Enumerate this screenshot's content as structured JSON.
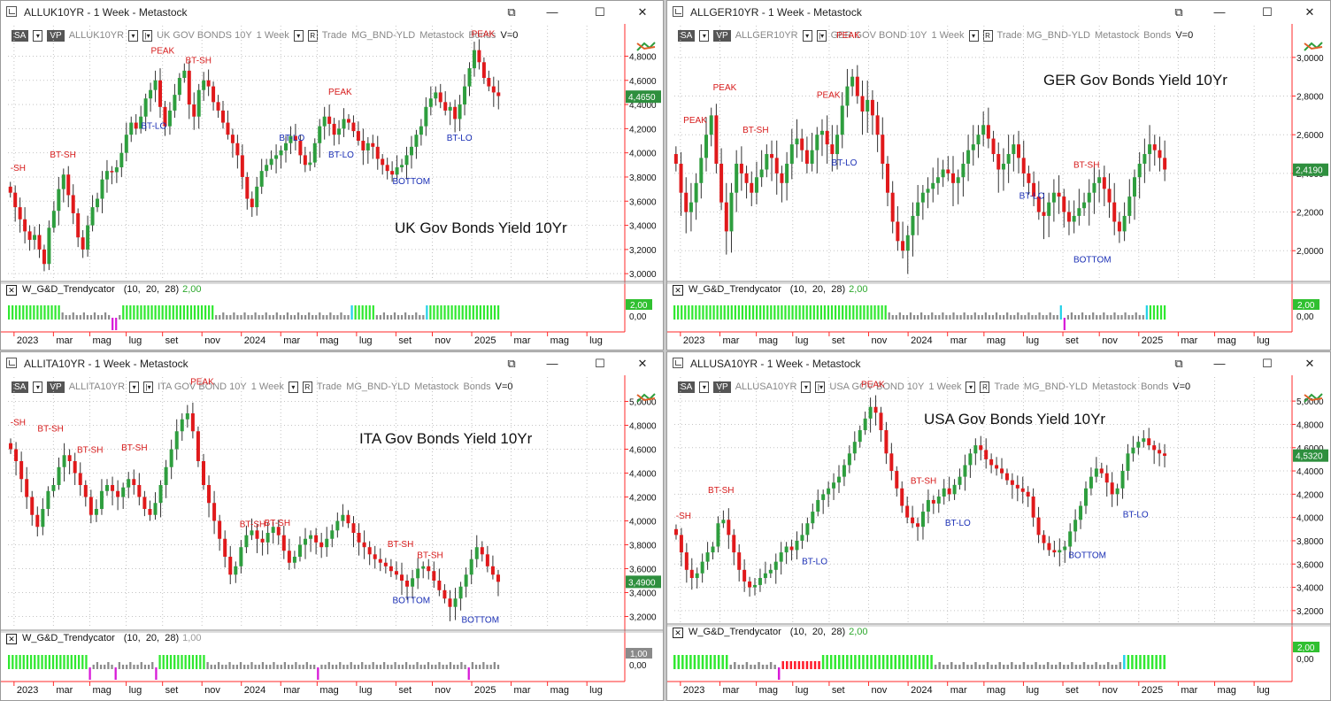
{
  "windows": [
    {
      "id": "uk",
      "title": "ALLUK10YR - 1 Week - Metastock",
      "toolbar": {
        "sa": "SA",
        "vp": "VP",
        "symbol": "ALLUK10YR",
        "name": "UK GOV BONDS 10Y",
        "period": "1 Week",
        "r": "R",
        "trade": "Trade",
        "group": "MG_BND-YLD",
        "source": "Metastock",
        "sector": "Bonds",
        "v": "V=0"
      },
      "chart_title": "UK Gov Bonds Yield 10Yr",
      "y_ticks": [
        "4,8000",
        "4,6000",
        "4,4000",
        "4,2000",
        "4,0000",
        "3,8000",
        "3,6000",
        "3,4000",
        "3,2000",
        "3,0000"
      ],
      "y_min": 2.95,
      "y_max": 4.95,
      "price_badge": "4,4650",
      "last_value": 4.465,
      "annotations": [
        {
          "text": "-SH",
          "color": "red"
        },
        {
          "text": "BT-SH",
          "color": "red"
        },
        {
          "text": "PEAK",
          "color": "red"
        },
        {
          "text": "BT-SH",
          "color": "red"
        },
        {
          "text": "BT-LO",
          "color": "blue"
        },
        {
          "text": "PEAK",
          "color": "red"
        },
        {
          "text": "BT-LO",
          "color": "blue"
        },
        {
          "text": "BT-LO",
          "color": "blue"
        },
        {
          "text": "BOTTOM",
          "color": "blue"
        },
        {
          "text": "BT-LO",
          "color": "blue"
        },
        {
          "text": "PEAK",
          "color": "red"
        }
      ],
      "indicator": {
        "name": "W_G&D_Trendycator",
        "params": "(10,  20,  28)",
        "value": "2,00",
        "badge": "2,00",
        "zero": "0,00"
      },
      "time_axis": [
        "2023",
        "mar",
        "mag",
        "lug",
        "set",
        "nov",
        "2024",
        "mar",
        "mag",
        "lug",
        "set",
        "nov",
        "2025",
        "mar",
        "mag",
        "lug"
      ]
    },
    {
      "id": "ger",
      "title": "ALLGER10YR - 1 Week - Metastock",
      "toolbar": {
        "sa": "SA",
        "vp": "VP",
        "symbol": "ALLGER10YR",
        "name": "GER GOV BOND 10Y",
        "period": "1 Week",
        "r": "R",
        "trade": "Trade",
        "group": "MG_BND-YLD",
        "source": "Metastock",
        "sector": "Bonds",
        "v": "V=0"
      },
      "chart_title": "GER Gov Bonds Yield 10Yr",
      "y_ticks": [
        "3,0000",
        "2,8000",
        "2,6000",
        "2,4000",
        "2,2000",
        "2,0000"
      ],
      "y_min": 1.85,
      "y_max": 3.1,
      "price_badge": "2,4190",
      "last_value": 2.419,
      "annotations": [
        {
          "text": "PEAK",
          "color": "red"
        },
        {
          "text": "PEAK",
          "color": "red"
        },
        {
          "text": "BT-SH",
          "color": "red"
        },
        {
          "text": "PEAK",
          "color": "red"
        },
        {
          "text": "PEAK",
          "color": "red"
        },
        {
          "text": "BT-LO",
          "color": "blue"
        },
        {
          "text": "BT-LO",
          "color": "blue"
        },
        {
          "text": "BT-SH",
          "color": "red"
        },
        {
          "text": "BOTTOM",
          "color": "blue"
        }
      ],
      "indicator": {
        "name": "W_G&D_Trendycator",
        "params": "(10,  20,  28)",
        "value": "2,00",
        "badge": "2,00",
        "zero": "0,00"
      },
      "time_axis": [
        "2023",
        "mar",
        "mag",
        "lug",
        "set",
        "nov",
        "2024",
        "mar",
        "mag",
        "lug",
        "set",
        "nov",
        "2025",
        "mar",
        "mag",
        "lug"
      ]
    },
    {
      "id": "ita",
      "title": "ALLITA10YR - 1 Week - Metastock",
      "toolbar": {
        "sa": "SA",
        "vp": "VP",
        "symbol": "ALLITA10YR",
        "name": "ITA GOV BOND 10Y",
        "period": "1 Week",
        "r": "R",
        "trade": "Trade",
        "group": "MG_BND-YLD",
        "source": "Metastock",
        "sector": "Bonds",
        "v": "V=0"
      },
      "chart_title": "ITA Gov Bonds Yield 10Yr",
      "y_ticks": [
        "5,0000",
        "4,8000",
        "4,6000",
        "4,4000",
        "4,2000",
        "4,0000",
        "3,8000",
        "3,6000",
        "3,4000",
        "3,2000"
      ],
      "y_min": 3.1,
      "y_max": 5.1,
      "price_badge": "3,4900",
      "last_value": 3.49,
      "annotations": [
        {
          "text": "-SH",
          "color": "red"
        },
        {
          "text": "BT-SH",
          "color": "red"
        },
        {
          "text": "BT-SH",
          "color": "red"
        },
        {
          "text": "BT-SH",
          "color": "red"
        },
        {
          "text": "PEAK",
          "color": "red"
        },
        {
          "text": "BT-SH",
          "color": "red"
        },
        {
          "text": "BT-SH",
          "color": "red"
        },
        {
          "text": "BT-SH",
          "color": "red"
        },
        {
          "text": "BT-SH",
          "color": "red"
        },
        {
          "text": "BOTTOM",
          "color": "blue"
        },
        {
          "text": "BOTTOM",
          "color": "blue"
        }
      ],
      "indicator": {
        "name": "W_G&D_Trendycator",
        "params": "(10,  20,  28)",
        "value": "1,00",
        "badge": "1,00",
        "zero": "0,00"
      },
      "time_axis": [
        "2023",
        "mar",
        "mag",
        "lug",
        "set",
        "nov",
        "2024",
        "mar",
        "mag",
        "lug",
        "set",
        "nov",
        "2025",
        "mar",
        "mag",
        "lug"
      ]
    },
    {
      "id": "usa",
      "title": "ALLUSA10YR - 1 Week - Metastock",
      "toolbar": {
        "sa": "SA",
        "vp": "VP",
        "symbol": "ALLUSA10YR",
        "name": "USA GOV BOND 10Y",
        "period": "1 Week",
        "r": "R",
        "trade": "Trade",
        "group": "MG_BND-YLD",
        "source": "Metastock",
        "sector": "Bonds",
        "v": "V=0"
      },
      "chart_title": "USA Gov Bonds Yield 10Yr",
      "y_ticks": [
        "5,0000",
        "4,8000",
        "4,6000",
        "4,4000",
        "4,2000",
        "4,0000",
        "3,8000",
        "3,6000",
        "3,4000",
        "3,2000"
      ],
      "y_min": 3.1,
      "y_max": 5.1,
      "price_badge": "4,5320",
      "last_value": 4.532,
      "annotations": [
        {
          "text": "-SH",
          "color": "red"
        },
        {
          "text": "BT-SH",
          "color": "red"
        },
        {
          "text": "BT-LO",
          "color": "blue"
        },
        {
          "text": "PEAK",
          "color": "red"
        },
        {
          "text": "BT-SH",
          "color": "red"
        },
        {
          "text": "BT-LO",
          "color": "blue"
        },
        {
          "text": "BOTTOM",
          "color": "blue"
        },
        {
          "text": "BT-LO",
          "color": "blue"
        }
      ],
      "indicator": {
        "name": "W_G&D_Trendycator",
        "params": "(10,  20,  28)",
        "value": "2,00",
        "badge": "2,00",
        "zero": "0,00"
      },
      "time_axis": [
        "2023",
        "mar",
        "mag",
        "lug",
        "set",
        "nov",
        "2024",
        "mar",
        "mag",
        "lug",
        "set",
        "nov",
        "2025",
        "mar",
        "mag",
        "lug"
      ]
    }
  ],
  "window_buttons": {
    "detach": "⧉",
    "minimize": "—",
    "maximize": "☐",
    "close": "✕"
  },
  "colors": {
    "bull": "#2e9e3e",
    "bear": "#e0191b",
    "peak": "#d61a1a",
    "bottom": "#1a2fb5",
    "ind_green": "#30e830",
    "ind_grey": "#8c8c8c",
    "ind_red": "#ff1a2a",
    "ind_magenta": "#d81ad8",
    "ind_cyan": "#22d0e8",
    "axis_red": "#ff2a2a"
  }
}
